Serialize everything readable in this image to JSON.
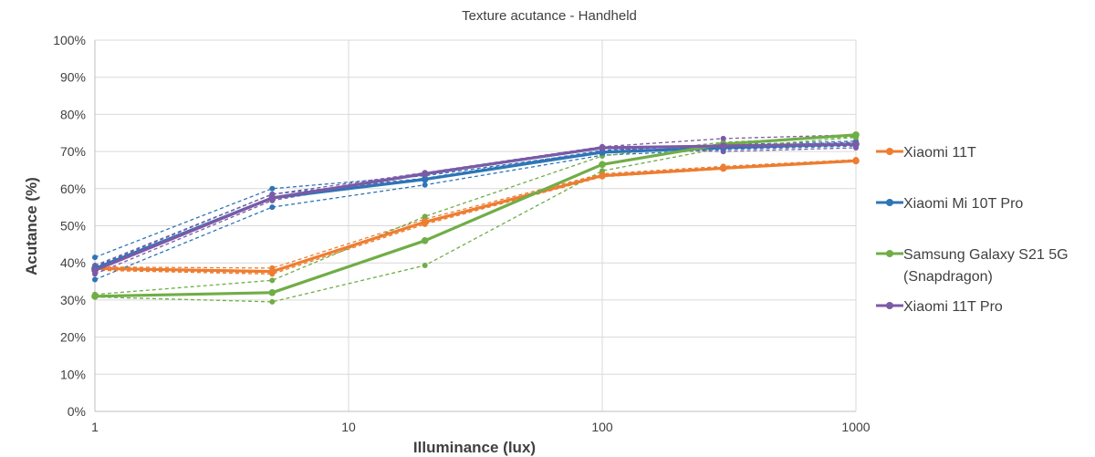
{
  "chart_data": {
    "type": "line",
    "title": "Texture acutance - Handheld",
    "xlabel": "Illuminance (lux)",
    "ylabel": "Acutance (%)",
    "x_scale": "log",
    "xlim": [
      1,
      1000
    ],
    "ylim": [
      0,
      100
    ],
    "grid": true,
    "legend_position": "right",
    "x_ticks": [
      1,
      10,
      100,
      1000
    ],
    "x_tick_labels": [
      "1",
      "10",
      "100",
      "1000"
    ],
    "y_ticks": [
      0,
      10,
      20,
      30,
      40,
      50,
      60,
      70,
      80,
      90,
      100
    ],
    "y_tick_labels": [
      "0%",
      "10%",
      "20%",
      "30%",
      "40%",
      "50%",
      "60%",
      "70%",
      "80%",
      "90%",
      "100%"
    ],
    "x": [
      1,
      5,
      20,
      100,
      300,
      1000
    ],
    "series": [
      {
        "name": "Xiaomi 11T",
        "color": "#ED7D31",
        "values": [
          38.5,
          37.7,
          51.0,
          63.5,
          65.5,
          67.5
        ],
        "dashed": [
          [
            38.9,
            38.6,
            51.8,
            64.0,
            66.0,
            67.8
          ],
          [
            38.0,
            37.0,
            50.4,
            63.2,
            65.3,
            67.3
          ],
          [
            38.2,
            37.4,
            50.8,
            63.5,
            65.6,
            67.6
          ]
        ]
      },
      {
        "name": "Xiaomi Mi 10T Pro",
        "color": "#2E75B6",
        "values": [
          38.5,
          57.5,
          62.5,
          69.8,
          71.0,
          72.0
        ],
        "dashed": [
          [
            41.5,
            60.0,
            63.5,
            70.0,
            71.3,
            72.5
          ],
          [
            35.5,
            55.0,
            61.0,
            69.0,
            70.5,
            71.5
          ],
          [
            39.0,
            58.5,
            62.8,
            70.3,
            71.8,
            72.8
          ]
        ]
      },
      {
        "name": "Samsung Galaxy S21 5G",
        "name_line2": "(Snapdragon)",
        "color": "#70AD47",
        "values": [
          31.0,
          32.0,
          46.0,
          66.5,
          72.0,
          74.5
        ],
        "dashed": [
          [
            31.5,
            35.3,
            52.5,
            68.8,
            72.5,
            74.0
          ],
          [
            30.8,
            29.5,
            39.3,
            64.8,
            71.0,
            73.8
          ]
        ]
      },
      {
        "name": "Xiaomi 11T Pro",
        "color": "#7B5AA6",
        "values": [
          38.0,
          57.5,
          64.0,
          71.0,
          71.5,
          72.0
        ],
        "dashed": [
          [
            39.3,
            58.5,
            64.3,
            71.3,
            73.5,
            74.5
          ],
          [
            37.0,
            56.8,
            63.8,
            70.8,
            70.0,
            71.0
          ]
        ]
      }
    ]
  }
}
